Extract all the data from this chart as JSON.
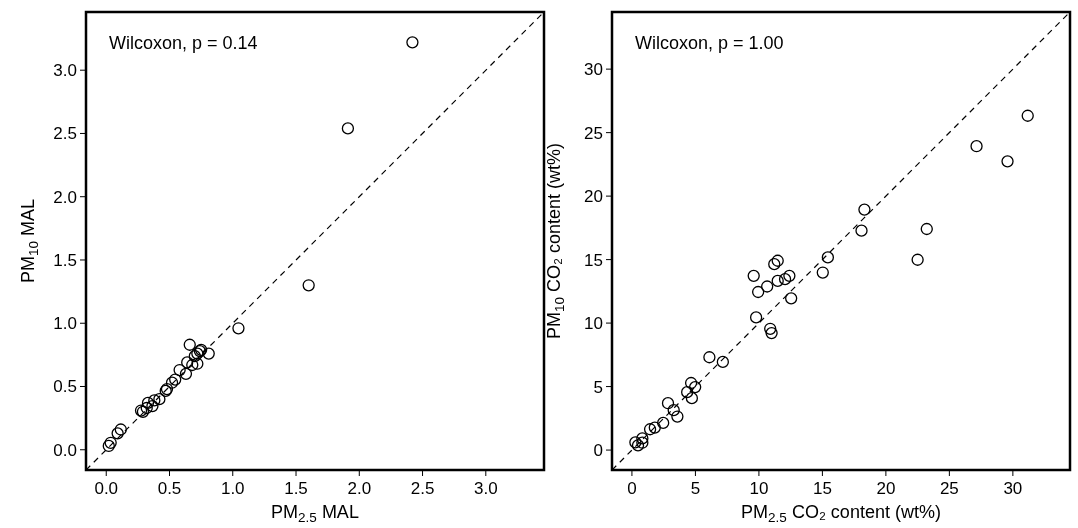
{
  "chart_data": [
    {
      "type": "scatter",
      "xlabel": "PM$_{2.5}$ MAL",
      "ylabel": "PM$_{10}$ MAL",
      "annotations": [
        "Wilcoxon, p = 0.14"
      ],
      "xlim": [
        -0.16,
        3.46
      ],
      "ylim": [
        -0.16,
        3.46
      ],
      "xticks": [
        {
          "value": 0,
          "label": "0.0"
        },
        {
          "value": 0.5,
          "label": "0.5"
        },
        {
          "value": 1,
          "label": "1.0"
        },
        {
          "value": 1.5,
          "label": "1.5"
        },
        {
          "value": 2,
          "label": "2.0"
        },
        {
          "value": 2.5,
          "label": "2.5"
        },
        {
          "value": 3,
          "label": "3.0"
        }
      ],
      "yticks": [
        {
          "value": 0,
          "label": "0.0"
        },
        {
          "value": 0.5,
          "label": "0.5"
        },
        {
          "value": 1,
          "label": "1.0"
        },
        {
          "value": 1.5,
          "label": "1.5"
        },
        {
          "value": 2,
          "label": "2.0"
        },
        {
          "value": 2.5,
          "label": "2.5"
        },
        {
          "value": 3,
          "label": "3.0"
        }
      ],
      "grid": false,
      "series": [
        {
          "type": "scatter",
          "marker": "circle",
          "color": "#000000",
          "x": [
            2.42,
            1.91,
            1.6,
            1.045,
            0.66,
            0.81,
            0.74,
            0.75,
            0.72,
            0.7,
            0.72,
            0.68,
            0.64,
            0.63,
            0.58,
            0.545,
            0.52,
            0.48,
            0.47,
            0.42,
            0.38,
            0.365,
            0.33,
            0.32,
            0.29,
            0.275,
            0.115,
            0.09,
            0.035,
            0.02
          ],
          "values": [
            3.22,
            2.54,
            1.3,
            0.96,
            0.83,
            0.76,
            0.78,
            0.79,
            0.76,
            0.74,
            0.68,
            0.67,
            0.69,
            0.6,
            0.63,
            0.555,
            0.53,
            0.48,
            0.465,
            0.4,
            0.39,
            0.345,
            0.37,
            0.33,
            0.3,
            0.31,
            0.16,
            0.13,
            0.055,
            0.03
          ]
        },
        {
          "type": "line",
          "marker": "none",
          "color": "#000000",
          "line_style": "dashed",
          "x": [
            -0.16,
            3.46
          ],
          "values": [
            -0.16,
            3.46
          ]
        }
      ]
    },
    {
      "type": "scatter",
      "xlabel": "PM$_{2.5}$ CO₂ content (wt%)",
      "ylabel": "PM$_{10}$ CO₂ content (wt%)",
      "annotations": [
        "Wilcoxon, p = 1.00"
      ],
      "xlim": [
        -1.57,
        34.5
      ],
      "ylim": [
        -1.57,
        34.5
      ],
      "xticks": [
        0,
        5,
        10,
        15,
        20,
        25,
        30
      ],
      "yticks": [
        0,
        5,
        10,
        15,
        20,
        25,
        30
      ],
      "grid": false,
      "series": [
        {
          "type": "scatter",
          "marker": "circle",
          "color": "#000000",
          "x": [
            31.17,
            27.14,
            29.58,
            18.31,
            18.08,
            23.22,
            22.5,
            15.43,
            15.03,
            11.48,
            11.21,
            9.59,
            12.4,
            12.06,
            11.48,
            10.65,
            9.94,
            12.54,
            9.78,
            10.89,
            11.0,
            6.1,
            7.16,
            4.66,
            4.98,
            4.35,
            4.72,
            2.84,
            3.29,
            3.58,
            2.46,
            1.8,
            1.43,
            0.82,
            0.82,
            0.27,
            0.48
          ],
          "values": [
            26.33,
            23.93,
            22.74,
            18.94,
            17.28,
            17.41,
            14.99,
            15.17,
            13.98,
            14.91,
            14.64,
            13.72,
            13.72,
            13.46,
            13.32,
            12.88,
            12.45,
            11.95,
            10.45,
            9.55,
            9.21,
            7.31,
            6.94,
            5.28,
            4.96,
            4.56,
            4.09,
            3.69,
            3.14,
            2.64,
            2.14,
            1.77,
            1.64,
            0.92,
            0.58,
            0.61,
            0.37
          ]
        },
        {
          "type": "line",
          "marker": "none",
          "color": "#000000",
          "line_style": "dashed",
          "x": [
            -1.57,
            34.5
          ],
          "values": [
            -1.57,
            34.5
          ]
        }
      ]
    }
  ]
}
